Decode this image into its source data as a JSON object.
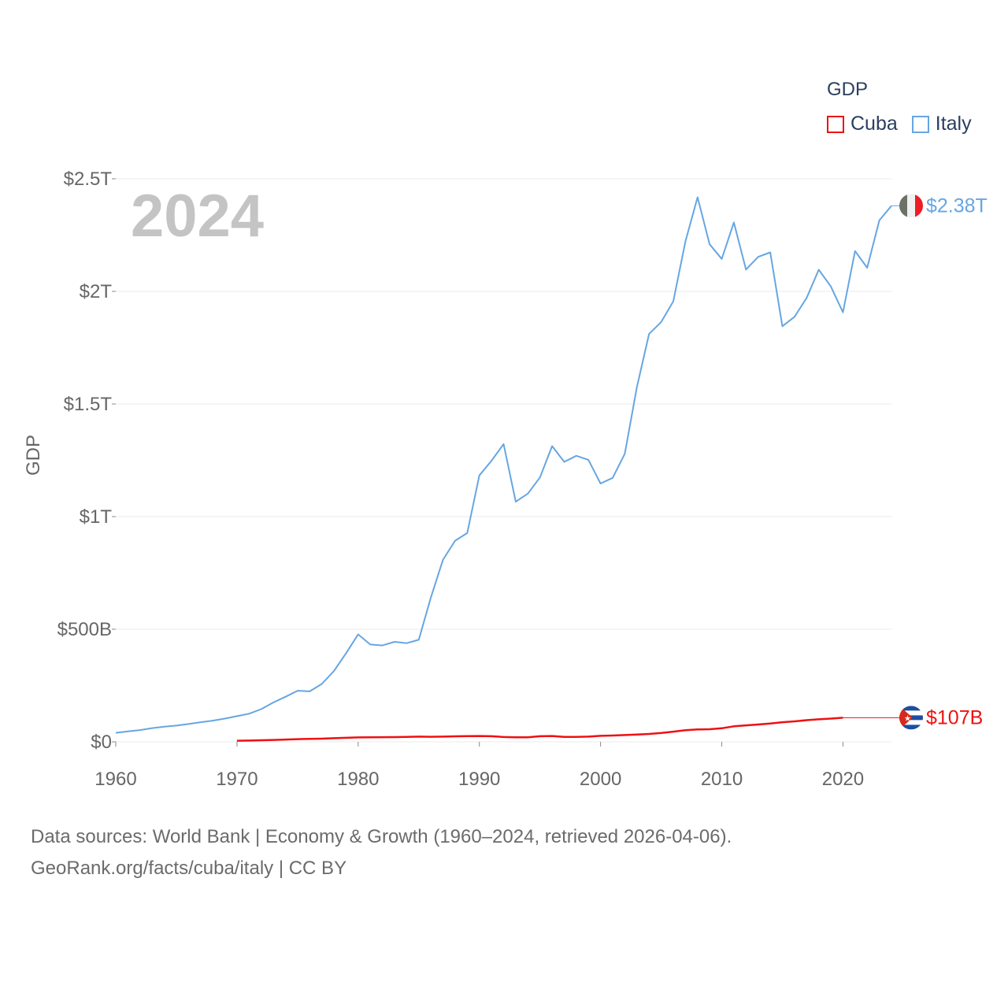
{
  "legend": {
    "title": "GDP",
    "items": [
      {
        "label": "Cuba",
        "color": "#ee1111"
      },
      {
        "label": "Italy",
        "color": "#66a6e2"
      }
    ]
  },
  "footer": {
    "line1": "Data sources: World Bank | Economy & Growth (1960–2024, retrieved 2026-04-06).",
    "line2": "GeoRank.org/facts/cuba/italy | CC BY"
  },
  "chart_data": {
    "type": "line",
    "year_label": "2024",
    "ylabel": "GDP",
    "xlim": [
      1960,
      2024
    ],
    "ylim": [
      0,
      2.5
    ],
    "y_units": "trillion USD",
    "x_ticks": [
      1960,
      1970,
      1980,
      1990,
      2000,
      2010,
      2020
    ],
    "x_tick_labels": [
      "1960",
      "1970",
      "1980",
      "1990",
      "2000",
      "2010",
      "2020"
    ],
    "y_ticks": [
      0,
      0.5,
      1,
      1.5,
      2,
      2.5
    ],
    "y_tick_labels": [
      "$0",
      "$500B",
      "$1T",
      "$1.5T",
      "$2T",
      "$2.5T"
    ],
    "series": [
      {
        "name": "Italy",
        "color": "#66a6e2",
        "end_label": "$2.38T",
        "x": [
          1960,
          1961,
          1962,
          1963,
          1964,
          1965,
          1966,
          1967,
          1968,
          1969,
          1970,
          1971,
          1972,
          1973,
          1974,
          1975,
          1976,
          1977,
          1978,
          1979,
          1980,
          1981,
          1982,
          1983,
          1984,
          1985,
          1986,
          1987,
          1988,
          1989,
          1990,
          1991,
          1992,
          1993,
          1994,
          1995,
          1996,
          1997,
          1998,
          1999,
          2000,
          2001,
          2002,
          2003,
          2004,
          2005,
          2006,
          2007,
          2008,
          2009,
          2010,
          2011,
          2012,
          2013,
          2014,
          2015,
          2016,
          2017,
          2018,
          2019,
          2020,
          2021,
          2022,
          2023,
          2024
        ],
        "values": [
          0.04,
          0.046,
          0.052,
          0.061,
          0.067,
          0.072,
          0.079,
          0.087,
          0.094,
          0.103,
          0.114,
          0.125,
          0.145,
          0.175,
          0.2,
          0.227,
          0.224,
          0.257,
          0.314,
          0.393,
          0.477,
          0.432,
          0.428,
          0.444,
          0.438,
          0.453,
          0.642,
          0.808,
          0.893,
          0.927,
          1.183,
          1.248,
          1.322,
          1.066,
          1.102,
          1.174,
          1.313,
          1.243,
          1.27,
          1.252,
          1.147,
          1.172,
          1.279,
          1.576,
          1.811,
          1.864,
          1.956,
          2.222,
          2.418,
          2.209,
          2.144,
          2.306,
          2.097,
          2.153,
          2.173,
          1.845,
          1.887,
          1.971,
          2.096,
          2.022,
          1.907,
          2.179,
          2.105,
          2.315,
          2.38
        ]
      },
      {
        "name": "Cuba",
        "color": "#ee1111",
        "end_label": "$107B",
        "x": [
          1970,
          1971,
          1972,
          1973,
          1974,
          1975,
          1976,
          1977,
          1978,
          1979,
          1980,
          1981,
          1982,
          1983,
          1984,
          1985,
          1986,
          1987,
          1988,
          1989,
          1990,
          1991,
          1992,
          1993,
          1994,
          1995,
          1996,
          1997,
          1998,
          1999,
          2000,
          2001,
          2002,
          2003,
          2004,
          2005,
          2006,
          2007,
          2008,
          2009,
          2010,
          2011,
          2012,
          2013,
          2014,
          2015,
          2016,
          2017,
          2018,
          2019,
          2020
        ],
        "values": [
          0.005,
          0.0055,
          0.007,
          0.0085,
          0.01,
          0.012,
          0.013,
          0.014,
          0.016,
          0.018,
          0.0195,
          0.02,
          0.0205,
          0.021,
          0.022,
          0.023,
          0.0225,
          0.023,
          0.0245,
          0.0255,
          0.026,
          0.025,
          0.0215,
          0.02,
          0.02,
          0.025,
          0.026,
          0.022,
          0.022,
          0.023,
          0.0265,
          0.028,
          0.03,
          0.032,
          0.035,
          0.039,
          0.045,
          0.0515,
          0.055,
          0.056,
          0.06,
          0.069,
          0.073,
          0.077,
          0.081,
          0.087,
          0.091,
          0.096,
          0.1,
          0.103,
          0.107
        ]
      }
    ]
  }
}
